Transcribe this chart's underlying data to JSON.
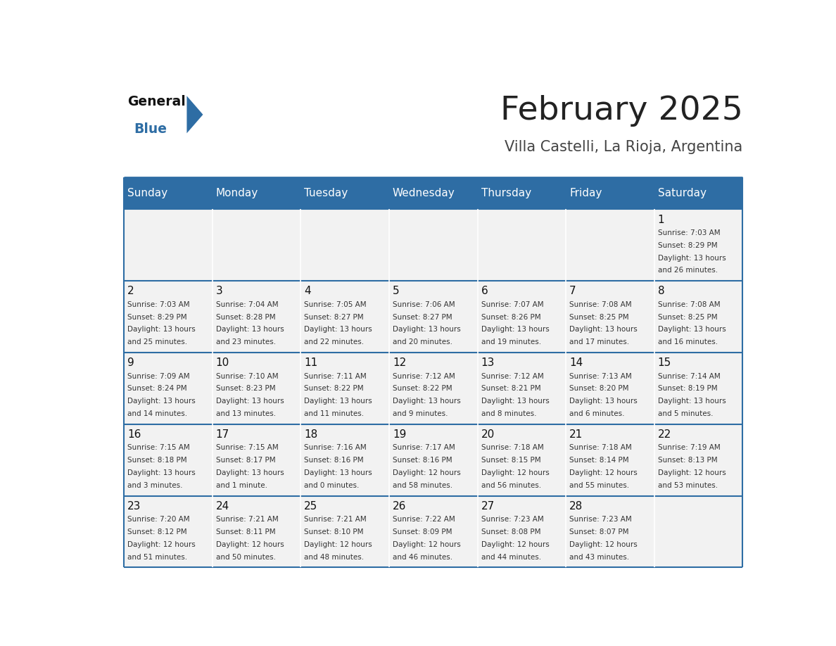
{
  "title": "February 2025",
  "subtitle": "Villa Castelli, La Rioja, Argentina",
  "header_bg": "#2E6DA4",
  "header_text": "#FFFFFF",
  "cell_bg": "#F2F2F2",
  "day_headers": [
    "Sunday",
    "Monday",
    "Tuesday",
    "Wednesday",
    "Thursday",
    "Friday",
    "Saturday"
  ],
  "title_color": "#222222",
  "subtitle_color": "#444444",
  "line_color": "#2E6DA4",
  "days": [
    {
      "day": 1,
      "col": 6,
      "row": 0,
      "sunrise": "7:03 AM",
      "sunset": "8:29 PM",
      "daylight": "13 hours and 26 minutes."
    },
    {
      "day": 2,
      "col": 0,
      "row": 1,
      "sunrise": "7:03 AM",
      "sunset": "8:29 PM",
      "daylight": "13 hours and 25 minutes."
    },
    {
      "day": 3,
      "col": 1,
      "row": 1,
      "sunrise": "7:04 AM",
      "sunset": "8:28 PM",
      "daylight": "13 hours and 23 minutes."
    },
    {
      "day": 4,
      "col": 2,
      "row": 1,
      "sunrise": "7:05 AM",
      "sunset": "8:27 PM",
      "daylight": "13 hours and 22 minutes."
    },
    {
      "day": 5,
      "col": 3,
      "row": 1,
      "sunrise": "7:06 AM",
      "sunset": "8:27 PM",
      "daylight": "13 hours and 20 minutes."
    },
    {
      "day": 6,
      "col": 4,
      "row": 1,
      "sunrise": "7:07 AM",
      "sunset": "8:26 PM",
      "daylight": "13 hours and 19 minutes."
    },
    {
      "day": 7,
      "col": 5,
      "row": 1,
      "sunrise": "7:08 AM",
      "sunset": "8:25 PM",
      "daylight": "13 hours and 17 minutes."
    },
    {
      "day": 8,
      "col": 6,
      "row": 1,
      "sunrise": "7:08 AM",
      "sunset": "8:25 PM",
      "daylight": "13 hours and 16 minutes."
    },
    {
      "day": 9,
      "col": 0,
      "row": 2,
      "sunrise": "7:09 AM",
      "sunset": "8:24 PM",
      "daylight": "13 hours and 14 minutes."
    },
    {
      "day": 10,
      "col": 1,
      "row": 2,
      "sunrise": "7:10 AM",
      "sunset": "8:23 PM",
      "daylight": "13 hours and 13 minutes."
    },
    {
      "day": 11,
      "col": 2,
      "row": 2,
      "sunrise": "7:11 AM",
      "sunset": "8:22 PM",
      "daylight": "13 hours and 11 minutes."
    },
    {
      "day": 12,
      "col": 3,
      "row": 2,
      "sunrise": "7:12 AM",
      "sunset": "8:22 PM",
      "daylight": "13 hours and 9 minutes."
    },
    {
      "day": 13,
      "col": 4,
      "row": 2,
      "sunrise": "7:12 AM",
      "sunset": "8:21 PM",
      "daylight": "13 hours and 8 minutes."
    },
    {
      "day": 14,
      "col": 5,
      "row": 2,
      "sunrise": "7:13 AM",
      "sunset": "8:20 PM",
      "daylight": "13 hours and 6 minutes."
    },
    {
      "day": 15,
      "col": 6,
      "row": 2,
      "sunrise": "7:14 AM",
      "sunset": "8:19 PM",
      "daylight": "13 hours and 5 minutes."
    },
    {
      "day": 16,
      "col": 0,
      "row": 3,
      "sunrise": "7:15 AM",
      "sunset": "8:18 PM",
      "daylight": "13 hours and 3 minutes."
    },
    {
      "day": 17,
      "col": 1,
      "row": 3,
      "sunrise": "7:15 AM",
      "sunset": "8:17 PM",
      "daylight": "13 hours and 1 minute."
    },
    {
      "day": 18,
      "col": 2,
      "row": 3,
      "sunrise": "7:16 AM",
      "sunset": "8:16 PM",
      "daylight": "13 hours and 0 minutes."
    },
    {
      "day": 19,
      "col": 3,
      "row": 3,
      "sunrise": "7:17 AM",
      "sunset": "8:16 PM",
      "daylight": "12 hours and 58 minutes."
    },
    {
      "day": 20,
      "col": 4,
      "row": 3,
      "sunrise": "7:18 AM",
      "sunset": "8:15 PM",
      "daylight": "12 hours and 56 minutes."
    },
    {
      "day": 21,
      "col": 5,
      "row": 3,
      "sunrise": "7:18 AM",
      "sunset": "8:14 PM",
      "daylight": "12 hours and 55 minutes."
    },
    {
      "day": 22,
      "col": 6,
      "row": 3,
      "sunrise": "7:19 AM",
      "sunset": "8:13 PM",
      "daylight": "12 hours and 53 minutes."
    },
    {
      "day": 23,
      "col": 0,
      "row": 4,
      "sunrise": "7:20 AM",
      "sunset": "8:12 PM",
      "daylight": "12 hours and 51 minutes."
    },
    {
      "day": 24,
      "col": 1,
      "row": 4,
      "sunrise": "7:21 AM",
      "sunset": "8:11 PM",
      "daylight": "12 hours and 50 minutes."
    },
    {
      "day": 25,
      "col": 2,
      "row": 4,
      "sunrise": "7:21 AM",
      "sunset": "8:10 PM",
      "daylight": "12 hours and 48 minutes."
    },
    {
      "day": 26,
      "col": 3,
      "row": 4,
      "sunrise": "7:22 AM",
      "sunset": "8:09 PM",
      "daylight": "12 hours and 46 minutes."
    },
    {
      "day": 27,
      "col": 4,
      "row": 4,
      "sunrise": "7:23 AM",
      "sunset": "8:08 PM",
      "daylight": "12 hours and 44 minutes."
    },
    {
      "day": 28,
      "col": 5,
      "row": 4,
      "sunrise": "7:23 AM",
      "sunset": "8:07 PM",
      "daylight": "12 hours and 43 minutes."
    }
  ],
  "logo_general_color": "#111111",
  "logo_blue_color": "#2E6DA4",
  "logo_triangle_color": "#2E6DA4"
}
